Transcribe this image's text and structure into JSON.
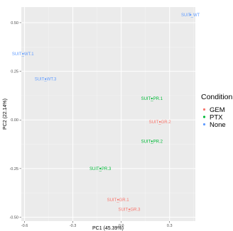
{
  "chart_data": {
    "type": "scatter",
    "xlabel": "PC1 (45.39%)",
    "ylabel": "PC2 (22.14%)",
    "xlim": [
      -0.62,
      0.46
    ],
    "ylim": [
      -0.52,
      0.58
    ],
    "x_ticks": [
      {
        "value": -0.6,
        "label": "-0.6"
      },
      {
        "value": -0.3,
        "label": "-0.3"
      },
      {
        "value": 0.0,
        "label": "0.0"
      },
      {
        "value": 0.3,
        "label": "0.3"
      }
    ],
    "y_ticks": [
      {
        "value": 0.5,
        "label": "0.50"
      },
      {
        "value": 0.25,
        "label": "0.25"
      },
      {
        "value": 0.0,
        "label": "0.00"
      },
      {
        "value": -0.25,
        "label": "-0.25"
      },
      {
        "value": -0.5,
        "label": "-0.50"
      }
    ],
    "grid": true,
    "legend": {
      "title": "Condition",
      "position": "right",
      "entries": [
        {
          "name": "GEM",
          "color": "#F8766D"
        },
        {
          "name": "PTX",
          "color": "#00BA38"
        },
        {
          "name": "None",
          "color": "#619CFF"
        }
      ]
    },
    "series": [
      {
        "name": "GEM",
        "color": "#F8766D",
        "points": [
          {
            "label": "SUIT_GR.1",
            "x": -0.02,
            "y": -0.41
          },
          {
            "label": "SUIT_GR.2",
            "x": 0.24,
            "y": -0.01
          },
          {
            "label": "SUIT_GR.3",
            "x": 0.05,
            "y": -0.46
          }
        ]
      },
      {
        "name": "PTX",
        "color": "#00BA38",
        "points": [
          {
            "label": "SUIT_PR.1",
            "x": 0.19,
            "y": 0.11
          },
          {
            "label": "SUIT_PR.2",
            "x": 0.19,
            "y": -0.11
          },
          {
            "label": "SUIT_PR.3",
            "x": -0.13,
            "y": -0.25
          }
        ]
      },
      {
        "name": "None",
        "color": "#619CFF",
        "points": [
          {
            "label": "SUIT_WT",
            "x": 0.43,
            "y": 0.54
          },
          {
            "label": "SUIT_WT.1",
            "x": -0.61,
            "y": 0.34
          },
          {
            "label": "SUIT_WT.3",
            "x": -0.47,
            "y": 0.21
          }
        ]
      }
    ]
  }
}
